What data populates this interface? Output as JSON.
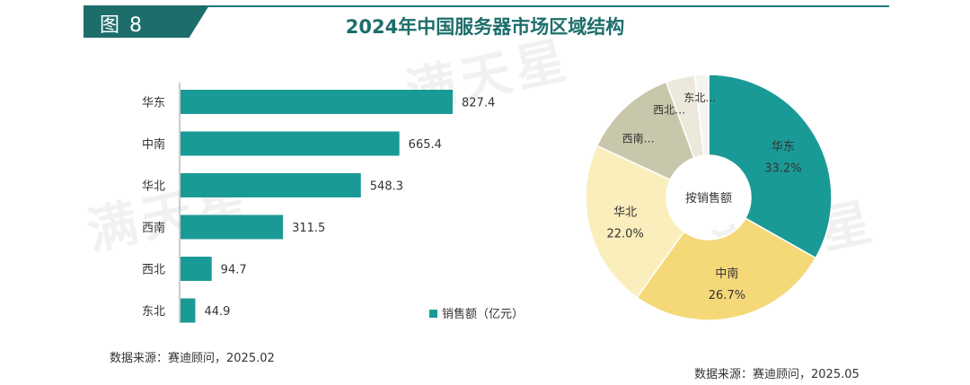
{
  "figure_label": "图 8",
  "title": "2024年中国服务器市场区域结构",
  "watermark": "满天星",
  "chart_data": [
    {
      "type": "bar",
      "orientation": "horizontal",
      "categories": [
        "华东",
        "中南",
        "华北",
        "西南",
        "西北",
        "东北"
      ],
      "values": [
        827.4,
        665.4,
        548.3,
        311.5,
        94.7,
        44.9
      ],
      "value_labels": [
        "827.4",
        "665.4",
        "548.3",
        "311.5",
        "94.7",
        "44.9"
      ],
      "series": [
        {
          "name": "销售额（亿元）",
          "values": [
            827.4,
            665.4,
            548.3,
            311.5,
            94.7,
            44.9
          ]
        }
      ],
      "xlim": [
        0,
        1100
      ],
      "legend": "bottom-right",
      "grid": false,
      "color": "#1a9a96",
      "source": "数据来源：赛迪顾问，2025.02"
    },
    {
      "type": "pie",
      "variant": "donut",
      "center_label": "按销售额",
      "slices": [
        {
          "label": "华东",
          "value": 33.2,
          "text": "33.2%",
          "color": "#1a9a96"
        },
        {
          "label": "中南",
          "value": 26.7,
          "text": "26.7%",
          "color": "#f5d878"
        },
        {
          "label": "华北",
          "value": 22.0,
          "text": "22.0%",
          "color": "#faeebc"
        },
        {
          "label": "西南…",
          "value": 12.5,
          "color": "#c9c7ab"
        },
        {
          "label": "西北…",
          "value": 3.8,
          "color": "#ece9dc"
        },
        {
          "label": "东北…",
          "value": 1.8,
          "color": "#f4f4f2"
        }
      ],
      "source": "数据来源：赛迪顾问，2025.05"
    }
  ]
}
